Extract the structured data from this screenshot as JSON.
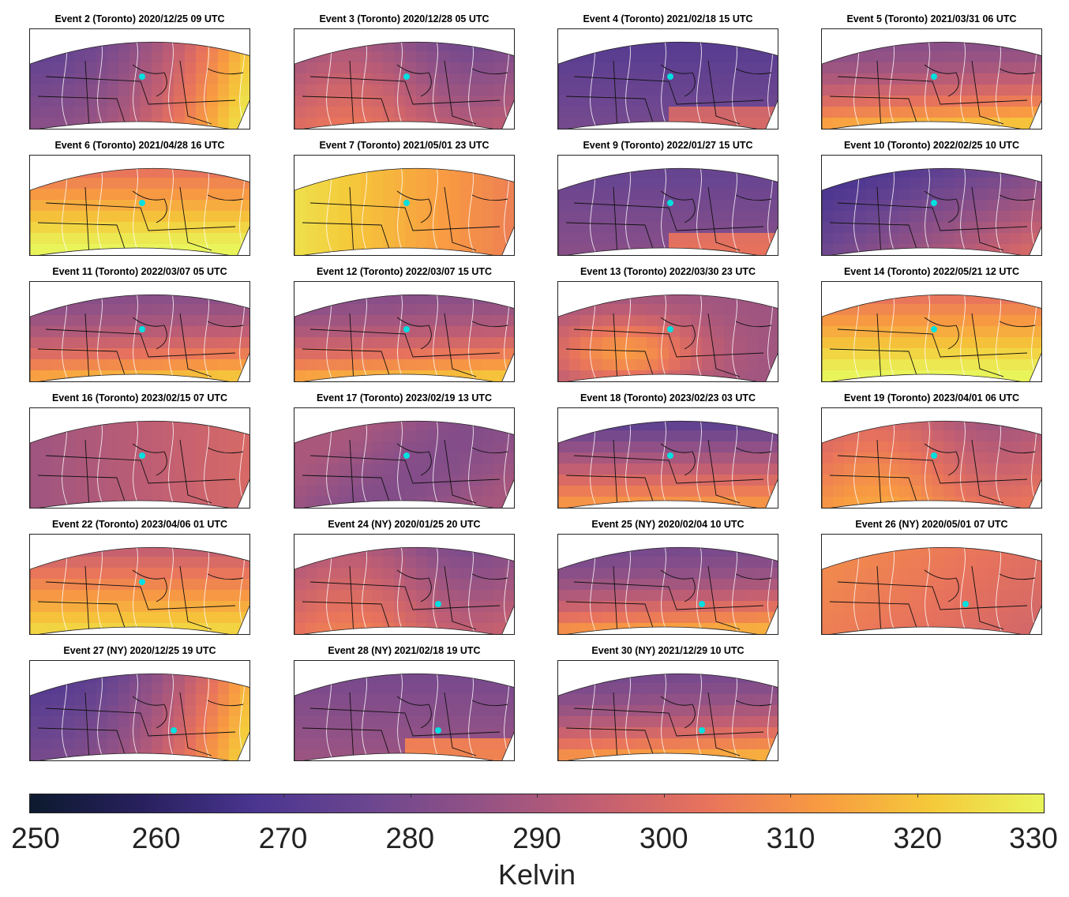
{
  "figure": {
    "panels": [
      {
        "title": "Event 2 (Toronto) 2020/12/25 09 UTC",
        "city": "Toronto",
        "base": 0.55,
        "pattern": "dipole-ew"
      },
      {
        "title": "Event 3 (Toronto) 2020/12/28 05 UTC",
        "city": "Toronto",
        "base": 0.42,
        "pattern": "low-center"
      },
      {
        "title": "Event 4 (Toronto) 2021/02/18 15 UTC",
        "city": "Toronto",
        "base": 0.25,
        "pattern": "cold"
      },
      {
        "title": "Event 5 (Toronto) 2021/03/31 06 UTC",
        "city": "Toronto",
        "base": 0.5,
        "pattern": "warm-south"
      },
      {
        "title": "Event 6 (Toronto) 2021/04/28 16 UTC",
        "city": "Toronto",
        "base": 0.7,
        "pattern": "hot-south"
      },
      {
        "title": "Event 7 (Toronto) 2021/05/01 23 UTC",
        "city": "Toronto",
        "base": 0.75,
        "pattern": "hot-west"
      },
      {
        "title": "Event 9 (Toronto) 2022/01/27 15 UTC",
        "city": "Toronto",
        "base": 0.3,
        "pattern": "cold"
      },
      {
        "title": "Event 10 (Toronto) 2022/02/25 10 UTC",
        "city": "Toronto",
        "base": 0.35,
        "pattern": "cold-nw"
      },
      {
        "title": "Event 11 (Toronto) 2022/03/07 05 UTC",
        "city": "Toronto",
        "base": 0.5,
        "pattern": "warm-south"
      },
      {
        "title": "Event 12 (Toronto) 2022/03/07 15 UTC",
        "city": "Toronto",
        "base": 0.5,
        "pattern": "warm-south"
      },
      {
        "title": "Event 13 (Toronto) 2022/03/30 23 UTC",
        "city": "Toronto",
        "base": 0.55,
        "pattern": "warm-center"
      },
      {
        "title": "Event 14 (Toronto) 2022/05/21 12 UTC",
        "city": "Toronto",
        "base": 0.7,
        "pattern": "hot-south"
      },
      {
        "title": "Event 16 (Toronto) 2023/02/15 07 UTC",
        "city": "Toronto",
        "base": 0.52,
        "pattern": "low-west"
      },
      {
        "title": "Event 17 (Toronto) 2023/02/19 13 UTC",
        "city": "Toronto",
        "base": 0.45,
        "pattern": "uniform"
      },
      {
        "title": "Event 18 (Toronto) 2023/02/23 03 UTC",
        "city": "Toronto",
        "base": 0.5,
        "pattern": "dipole-ns"
      },
      {
        "title": "Event 19 (Toronto) 2023/04/01 06 UTC",
        "city": "Toronto",
        "base": 0.55,
        "pattern": "low-center"
      },
      {
        "title": "Event 22 (Toronto) 2023/04/06 01 UTC",
        "city": "Toronto",
        "base": 0.6,
        "pattern": "hot-south"
      },
      {
        "title": "Event 24 (NY) 2020/01/25 20 UTC",
        "city": "NY",
        "base": 0.45,
        "pattern": "low-center"
      },
      {
        "title": "Event 25 (NY) 2020/02/04 10 UTC",
        "city": "NY",
        "base": 0.45,
        "pattern": "warm-south"
      },
      {
        "title": "Event 26 (NY) 2020/05/01 07 UTC",
        "city": "NY",
        "base": 0.65,
        "pattern": "warm-west"
      },
      {
        "title": "Event 27 (NY) 2020/12/25 19 UTC",
        "city": "NY",
        "base": 0.5,
        "pattern": "dipole-ew"
      },
      {
        "title": "Event 28 (NY) 2021/02/18 19 UTC",
        "city": "NY",
        "base": 0.35,
        "pattern": "cold"
      },
      {
        "title": "Event 30 (NY) 2021/12/29 10 UTC",
        "city": "NY",
        "base": 0.45,
        "pattern": "warm-south"
      }
    ]
  },
  "colorbar": {
    "min": 250,
    "max": 330,
    "ticks": [
      "250",
      "260",
      "270",
      "280",
      "290",
      "300",
      "310",
      "320",
      "330"
    ],
    "unit": "Kelvin",
    "colormap": [
      "#0c1a2e",
      "#28205e",
      "#4a3590",
      "#6b4690",
      "#935285",
      "#c05e73",
      "#e8735c",
      "#f89a42",
      "#f5c93a",
      "#e9f45a"
    ]
  },
  "markers": {
    "color": "#00e0e0"
  }
}
